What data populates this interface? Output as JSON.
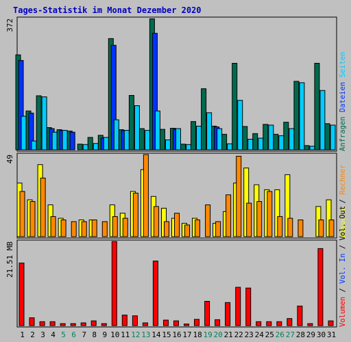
{
  "chart_data": {
    "type": "bar",
    "title": "Tages-Statistik im Monat Dezember 2020",
    "colors": {
      "background": "#c0c0c0",
      "title": "#0000c0",
      "hits": "#006a4e",
      "files": "#0033ff",
      "pages": "#00ccff",
      "visits": "#ffff00",
      "sites": "#ff8800",
      "volume": "#ff0000",
      "weekend": "#00805c"
    },
    "days": [
      "1",
      "2",
      "3",
      "4",
      "5",
      "6",
      "7",
      "8",
      "9",
      "10",
      "11",
      "12",
      "13",
      "14",
      "15",
      "16",
      "17",
      "18",
      "19",
      "20",
      "21",
      "22",
      "23",
      "24",
      "25",
      "26",
      "27",
      "28",
      "29",
      "30",
      "31"
    ],
    "weekend_days": [
      "5",
      "6",
      "12",
      "13",
      "19",
      "20",
      "26",
      "27"
    ],
    "panels": [
      {
        "id": "top",
        "ylabel": "372",
        "ymax": 372,
        "series": [
          {
            "name": "Anfragen",
            "color_key": "hits",
            "values": [
              269,
              110,
              153,
              63,
              57,
              53,
              16,
              35,
              41,
              315,
              57,
              154,
              60,
              371,
              58,
              61,
              16,
              80,
              173,
              67,
              44,
              245,
              66,
              46,
              72,
              44,
              78,
              194,
              12,
              245,
              74
            ]
          },
          {
            "name": "Dateien",
            "color_key": "files",
            "values": [
              253,
              104,
              0,
              60,
              55,
              50,
              0,
              0,
              33,
              296,
              55,
              0,
              0,
              330,
              0,
              58,
              0,
              0,
              0,
              65,
              0,
              0,
              0,
              0,
              0,
              0,
              0,
              0,
              0,
              0,
              0
            ]
          },
          {
            "name": "Seiten",
            "color_key": "pages",
            "values": [
              95,
              25,
              150,
              50,
              55,
              0,
              15,
              18,
              35,
              85,
              55,
              125,
              55,
              110,
              28,
              60,
              15,
              67,
              105,
              60,
              17,
              140,
              30,
              33,
              70,
              40,
              60,
              190,
              10,
              168,
              70
            ]
          }
        ],
        "right_labels": [
          {
            "text": "Anfragen",
            "color_key": "hits"
          },
          {
            "text": "Dateien",
            "color_key": "files"
          },
          {
            "text": "Seiten",
            "color_key": "pages"
          }
        ]
      },
      {
        "id": "middle",
        "ylabel": "49",
        "ymax": 49,
        "series": [
          {
            "name": "Besuche",
            "color_key": "visits",
            "values": [
              32,
              22,
              43,
              19,
              11,
              0,
              10,
              10,
              0,
              19,
              14,
              27,
              40,
              24,
              17,
              11,
              8,
              11,
              0,
              8,
              15,
              32,
              41,
              31,
              28,
              28,
              37,
              0,
              0,
              18,
              22
            ]
          },
          {
            "name": "Rechner",
            "color_key": "sites",
            "values": [
              27,
              21,
              35,
              12,
              10,
              9,
              9,
              10,
              9,
              12,
              11,
              26,
              49,
              18,
              9,
              14,
              7,
              10,
              19,
              9,
              25,
              48,
              20,
              21,
              27,
              12,
              11,
              10,
              0,
              10,
              10
            ]
          }
        ],
        "right_labels": [
          {
            "text": "Besuche",
            "color_key": "visits"
          },
          {
            "text": "/",
            "color_key": "text"
          },
          {
            "text": "Rechner",
            "color_key": "sites"
          }
        ]
      },
      {
        "id": "bottom",
        "ylabel": "21.51 MB",
        "ymax": 21.51,
        "series": [
          {
            "name": "Volumen",
            "color_key": "volume",
            "values": [
              16.0,
              2.0,
              1.0,
              1.0,
              0.5,
              0.5,
              0.7,
              1.2,
              0.5,
              21.5,
              2.7,
              2.5,
              0.7,
              16.5,
              1.4,
              1.2,
              0.4,
              1.6,
              6.2,
              1.5,
              5.9,
              9.8,
              9.6,
              1.0,
              1.0,
              1.0,
              1.8,
              5.0,
              0.5,
              19.7,
              1.2
            ]
          }
        ],
        "right_labels": [
          {
            "text": "Volumen",
            "color_key": "volume"
          },
          {
            "text": "/",
            "color_key": "text"
          },
          {
            "text": "Vol. In",
            "color_key": "files"
          },
          {
            "text": "/",
            "color_key": "text"
          },
          {
            "text": "Vol. Out",
            "color_key": "text"
          }
        ]
      }
    ],
    "text_color": "#000000"
  }
}
